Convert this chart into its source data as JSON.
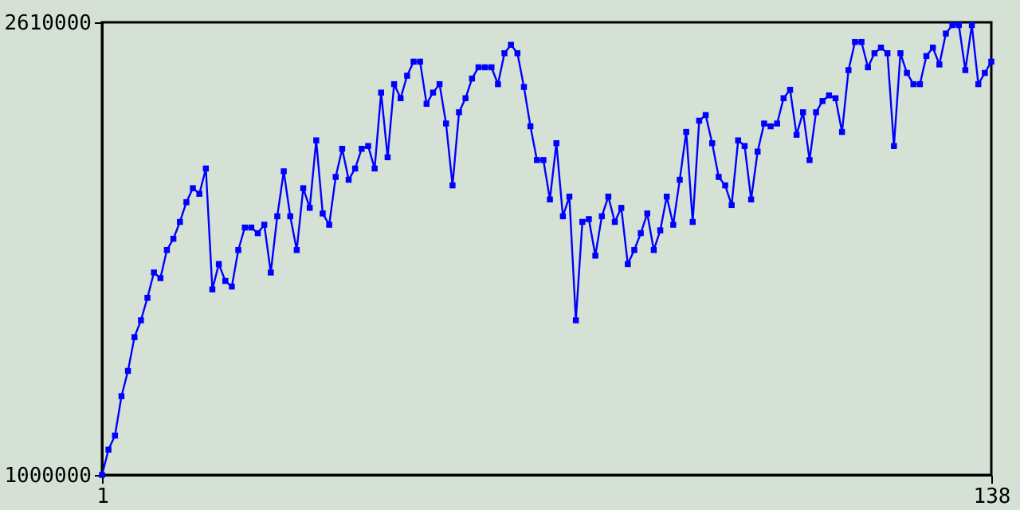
{
  "chart_data": {
    "type": "line",
    "marker": "square",
    "line_style": "solid",
    "grid": false,
    "legend": false,
    "x": [
      1,
      2,
      3,
      4,
      5,
      6,
      7,
      8,
      9,
      10,
      11,
      12,
      13,
      14,
      15,
      16,
      17,
      18,
      19,
      20,
      21,
      22,
      23,
      24,
      25,
      26,
      27,
      28,
      29,
      30,
      31,
      32,
      33,
      34,
      35,
      36,
      37,
      38,
      39,
      40,
      41,
      42,
      43,
      44,
      45,
      46,
      47,
      48,
      49,
      50,
      51,
      52,
      53,
      54,
      55,
      56,
      57,
      58,
      59,
      60,
      61,
      62,
      63,
      64,
      65,
      66,
      67,
      68,
      69,
      70,
      71,
      72,
      73,
      74,
      75,
      76,
      77,
      78,
      79,
      80,
      81,
      82,
      83,
      84,
      85,
      86,
      87,
      88,
      89,
      90,
      91,
      92,
      93,
      94,
      95,
      96,
      97,
      98,
      99,
      100,
      101,
      102,
      103,
      104,
      105,
      106,
      107,
      108,
      109,
      110,
      111,
      112,
      113,
      114,
      115,
      116,
      117,
      118,
      119,
      120,
      121,
      122,
      123,
      124,
      125,
      126,
      127,
      128,
      129,
      130,
      131,
      132,
      133,
      134,
      135,
      136,
      137,
      138
    ],
    "series": [
      {
        "color": "#0000ff",
        "values": [
          1000000,
          1090000,
          1140000,
          1280000,
          1370000,
          1490000,
          1550000,
          1630000,
          1720000,
          1700000,
          1800000,
          1840000,
          1900000,
          1970000,
          2020000,
          2000000,
          2090000,
          1660000,
          1750000,
          1690000,
          1670000,
          1800000,
          1880000,
          1880000,
          1860000,
          1890000,
          1720000,
          1920000,
          2080000,
          1920000,
          1800000,
          2020000,
          1950000,
          2190000,
          1930000,
          1890000,
          2060000,
          2160000,
          2050000,
          2090000,
          2160000,
          2170000,
          2090000,
          2360000,
          2130000,
          2390000,
          2340000,
          2420000,
          2470000,
          2470000,
          2320000,
          2360000,
          2390000,
          2250000,
          2030000,
          2290000,
          2340000,
          2410000,
          2450000,
          2450000,
          2450000,
          2390000,
          2500000,
          2530000,
          2500000,
          2380000,
          2240000,
          2120000,
          2120000,
          1980000,
          2180000,
          1920000,
          1990000,
          1550000,
          1900000,
          1910000,
          1780000,
          1920000,
          1990000,
          1900000,
          1950000,
          1750000,
          1800000,
          1860000,
          1930000,
          1800000,
          1870000,
          1990000,
          1890000,
          2050000,
          2220000,
          1900000,
          2260000,
          2280000,
          2180000,
          2060000,
          2030000,
          1960000,
          2190000,
          2170000,
          1980000,
          2150000,
          2250000,
          2240000,
          2250000,
          2340000,
          2370000,
          2210000,
          2290000,
          2120000,
          2290000,
          2330000,
          2350000,
          2340000,
          2220000,
          2440000,
          2540000,
          2540000,
          2450000,
          2500000,
          2520000,
          2500000,
          2170000,
          2500000,
          2430000,
          2390000,
          2390000,
          2490000,
          2520000,
          2460000,
          2570000,
          2600000,
          2600000,
          2440000,
          2600000,
          2390000,
          2430000,
          2470000
        ]
      }
    ],
    "xlim": [
      1,
      138
    ],
    "xticks": [
      1,
      138
    ],
    "ylim": [
      1000000,
      2610000
    ],
    "yticks": [
      1000000,
      2610000
    ]
  }
}
